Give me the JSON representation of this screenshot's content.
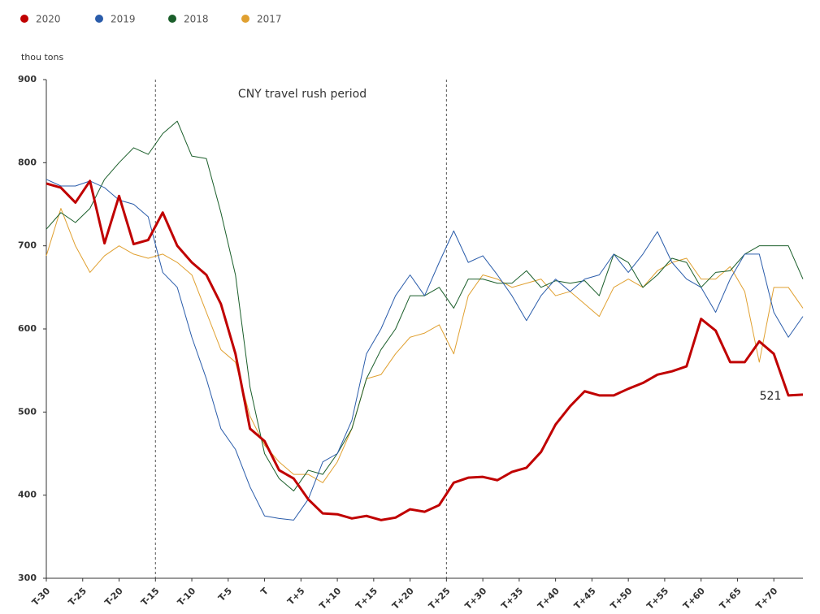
{
  "chart_data": {
    "type": "line",
    "y_label": "thou tons",
    "annotation": "CNY travel rush period",
    "rush_period": [
      -15,
      25
    ],
    "legend": "top-left",
    "xlim": [
      -30,
      74
    ],
    "ylim": [
      300,
      900
    ],
    "yticks": [
      300,
      400,
      500,
      600,
      700,
      800,
      900
    ],
    "xticks": [
      {
        "value": -30,
        "label": "T-30"
      },
      {
        "value": -25,
        "label": "T-25"
      },
      {
        "value": -20,
        "label": "T-20"
      },
      {
        "value": -15,
        "label": "T-15"
      },
      {
        "value": -10,
        "label": "T-10"
      },
      {
        "value": -5,
        "label": "T-5"
      },
      {
        "value": 0,
        "label": "T"
      },
      {
        "value": 5,
        "label": "T+5"
      },
      {
        "value": 10,
        "label": "T+10"
      },
      {
        "value": 15,
        "label": "T+15"
      },
      {
        "value": 20,
        "label": "T+20"
      },
      {
        "value": 25,
        "label": "T+25"
      },
      {
        "value": 30,
        "label": "T+30"
      },
      {
        "value": 35,
        "label": "T+35"
      },
      {
        "value": 40,
        "label": "T+40"
      },
      {
        "value": 45,
        "label": "T+45"
      },
      {
        "value": 50,
        "label": "T+50"
      },
      {
        "value": 55,
        "label": "T+55"
      },
      {
        "value": 60,
        "label": "T+60"
      },
      {
        "value": 65,
        "label": "T+65"
      },
      {
        "value": 70,
        "label": "T+70"
      }
    ],
    "x": [
      -30,
      -28,
      -26,
      -24,
      -22,
      -20,
      -18,
      -16,
      -14,
      -12,
      -10,
      -8,
      -6,
      -4,
      -2,
      0,
      2,
      4,
      6,
      8,
      10,
      12,
      14,
      16,
      18,
      20,
      22,
      24,
      26,
      28,
      30,
      32,
      34,
      36,
      38,
      40,
      42,
      44,
      46,
      48,
      50,
      52,
      54,
      56,
      58,
      60,
      62,
      64,
      66,
      68,
      70,
      72,
      74
    ],
    "series": [
      {
        "name": "2020",
        "color": "#c00000",
        "width": 3,
        "label_last": true,
        "values": [
          775,
          770,
          752,
          778,
          703,
          760,
          702,
          707,
          740,
          700,
          680,
          665,
          630,
          570,
          480,
          465,
          430,
          420,
          395,
          378,
          377,
          372,
          375,
          370,
          373,
          383,
          380,
          388,
          415,
          421,
          422,
          418,
          428,
          433,
          452,
          485,
          507,
          525,
          520,
          520,
          528,
          535,
          545,
          549,
          555,
          612,
          598,
          560,
          560,
          585,
          570,
          520,
          521
        ]
      },
      {
        "name": "2019",
        "color": "#2a5caa",
        "width": 1,
        "values": [
          780,
          772,
          772,
          778,
          770,
          755,
          750,
          735,
          668,
          650,
          590,
          540,
          480,
          455,
          410,
          375,
          372,
          370,
          395,
          440,
          450,
          490,
          570,
          600,
          640,
          665,
          640,
          680,
          718,
          680,
          688,
          665,
          640,
          610,
          640,
          660,
          645,
          660,
          665,
          690,
          668,
          690,
          717,
          680,
          660,
          650,
          620,
          660,
          690,
          690,
          620,
          590,
          615
        ]
      },
      {
        "name": "2018",
        "color": "#1a5e2a",
        "width": 1,
        "values": [
          720,
          740,
          728,
          745,
          780,
          800,
          818,
          810,
          835,
          850,
          808,
          805,
          740,
          665,
          530,
          450,
          420,
          405,
          430,
          425,
          450,
          480,
          540,
          575,
          600,
          640,
          640,
          650,
          625,
          660,
          660,
          655,
          655,
          670,
          650,
          658,
          655,
          658,
          640,
          690,
          680,
          650,
          665,
          685,
          680,
          650,
          668,
          670,
          690,
          700,
          700,
          700,
          660
        ]
      },
      {
        "name": "2017",
        "color": "#e0a030",
        "width": 1,
        "values": [
          688,
          745,
          700,
          668,
          688,
          700,
          690,
          685,
          690,
          680,
          665,
          620,
          575,
          560,
          495,
          460,
          440,
          425,
          425,
          415,
          440,
          480,
          540,
          545,
          570,
          590,
          595,
          605,
          570,
          640,
          665,
          660,
          650,
          655,
          660,
          640,
          645,
          630,
          615,
          650,
          660,
          650,
          670,
          680,
          685,
          660,
          660,
          675,
          645,
          560,
          650,
          650,
          625
        ]
      }
    ]
  }
}
